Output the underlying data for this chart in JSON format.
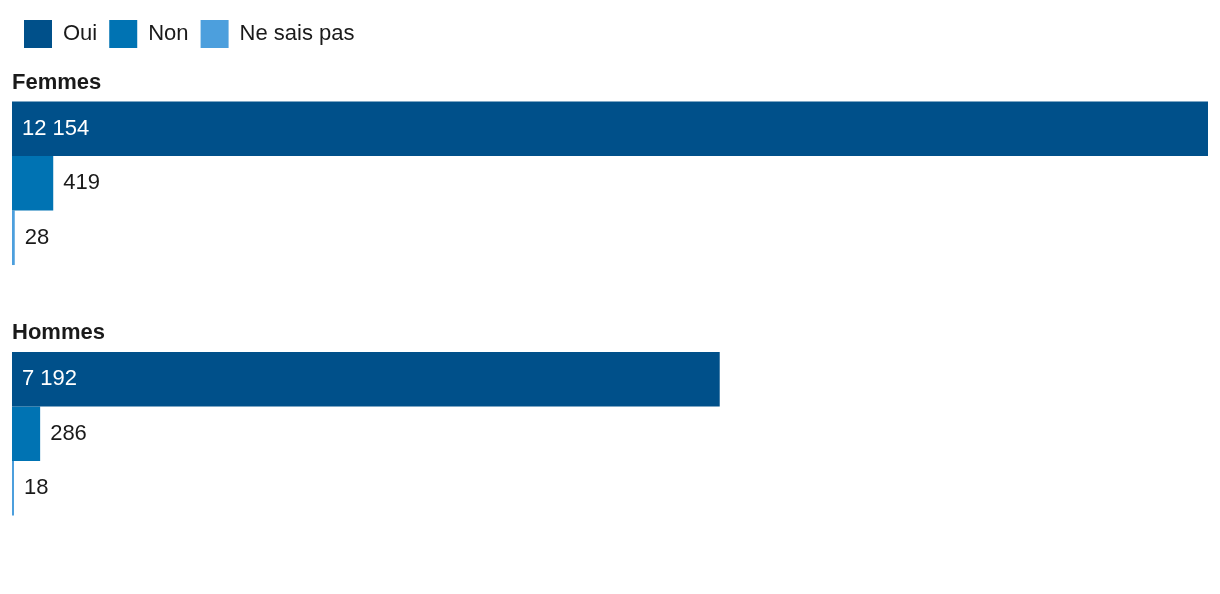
{
  "chart_data": {
    "type": "bar",
    "orientation": "horizontal",
    "categories": [
      "Femmes",
      "Hommes"
    ],
    "series": [
      {
        "name": "Oui",
        "color": "#00508a",
        "values": [
          12154,
          7192
        ]
      },
      {
        "name": "Non",
        "color": "#0073b3",
        "values": [
          419,
          286
        ]
      },
      {
        "name": "Ne sais pas",
        "color": "#4c9fdd",
        "values": [
          28,
          18
        ]
      }
    ],
    "data_labels": true,
    "legend": "top left"
  }
}
